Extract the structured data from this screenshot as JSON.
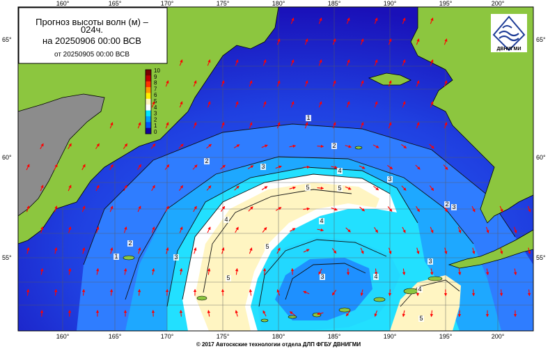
{
  "title_box": {
    "line1": "Прогноз высоты волн (м) –",
    "line2": "024ч.",
    "line3": "на 20250906 00:00 ВСВ",
    "line4": "от 20250905 00:00 ВСВ"
  },
  "logo": {
    "text": "ДВНИГМИ"
  },
  "footer": "© 2017 Автоскские технологии отдела ДЛП ФГБУ ДВНИГМИ",
  "axes": {
    "lon_labels": [
      "160°",
      "165°",
      "170°",
      "175°",
      "180°",
      "185°",
      "190°",
      "195°",
      "200°"
    ],
    "lat_labels": [
      "65°",
      "60°",
      "55°"
    ]
  },
  "colorbar": {
    "levels": [
      "10",
      "9",
      "8",
      "7",
      "6",
      "5",
      "4",
      "3",
      "2",
      "1",
      "0"
    ],
    "colors": [
      "#7a0000",
      "#c00000",
      "#ff3300",
      "#ff9900",
      "#ffee00",
      "#fff6c0",
      "#ffffff",
      "#00e5ff",
      "#00a0ff",
      "#0055ff",
      "#1400a0"
    ]
  },
  "contour_labels": [
    "1",
    "2",
    "2",
    "3",
    "4",
    "5",
    "5",
    "4",
    "5",
    "4",
    "3",
    "3",
    "2",
    "1",
    "2",
    "3",
    "5",
    "4",
    "3",
    "4",
    "3",
    "5"
  ],
  "colors": {
    "land": "#8cc63f",
    "land_gray": "#8c8c8c",
    "arrow": "#ff0000",
    "deep": "#1a00b0"
  }
}
